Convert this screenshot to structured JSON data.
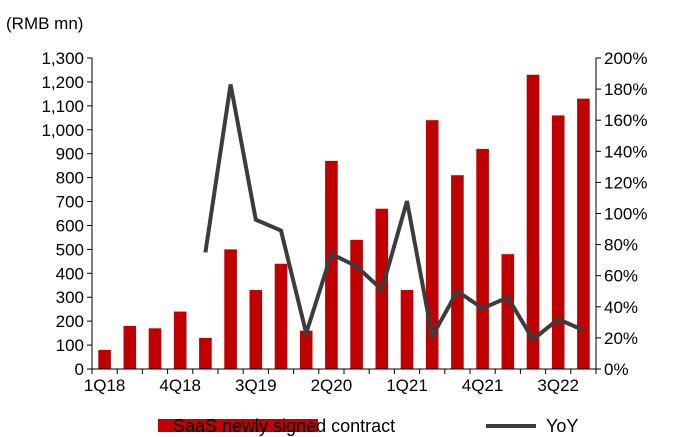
{
  "chart_data": {
    "type": "bar+line",
    "unit_label": "(RMB mn)",
    "categories": [
      "1Q18",
      "2Q18",
      "3Q18",
      "4Q18",
      "1Q19",
      "2Q19",
      "3Q19",
      "4Q19",
      "1Q20",
      "2Q20",
      "3Q20",
      "4Q20",
      "1Q21",
      "2Q21",
      "3Q21",
      "4Q21",
      "1Q22",
      "2Q22",
      "3Q22",
      "4Q22"
    ],
    "x_tick_labels": [
      "1Q18",
      "",
      "",
      "4Q18",
      "",
      "",
      "3Q19",
      "",
      "",
      "2Q20",
      "",
      "",
      "1Q21",
      "",
      "",
      "4Q21",
      "",
      "",
      "3Q22",
      ""
    ],
    "series": [
      {
        "name": "SaaS newly signed contract",
        "type": "bar",
        "axis": "left",
        "color": "#c00000",
        "values": [
          80,
          180,
          170,
          240,
          130,
          500,
          330,
          440,
          160,
          870,
          540,
          670,
          330,
          1040,
          810,
          920,
          480,
          1230,
          1060,
          1130
        ]
      },
      {
        "name": "YoY",
        "type": "line",
        "axis": "right",
        "color": "#3c3c3c",
        "values": [
          null,
          null,
          null,
          null,
          0.75,
          1.83,
          0.96,
          0.89,
          0.23,
          0.74,
          0.66,
          0.51,
          1.08,
          0.21,
          0.5,
          0.39,
          0.46,
          0.19,
          0.32,
          0.25
        ]
      }
    ],
    "y_left": {
      "min": 0,
      "max": 1300,
      "step": 100,
      "tick_labels": [
        "0",
        "100",
        "200",
        "300",
        "400",
        "500",
        "600",
        "700",
        "800",
        "900",
        "1,000",
        "1,100",
        "1,200",
        "1,300"
      ]
    },
    "y_right": {
      "min": 0,
      "max": 2,
      "step": 0.2,
      "tick_labels": [
        "0%",
        "20%",
        "40%",
        "60%",
        "80%",
        "100%",
        "120%",
        "140%",
        "160%",
        "180%",
        "200%"
      ]
    },
    "grid": false,
    "legend_position": "bottom"
  }
}
